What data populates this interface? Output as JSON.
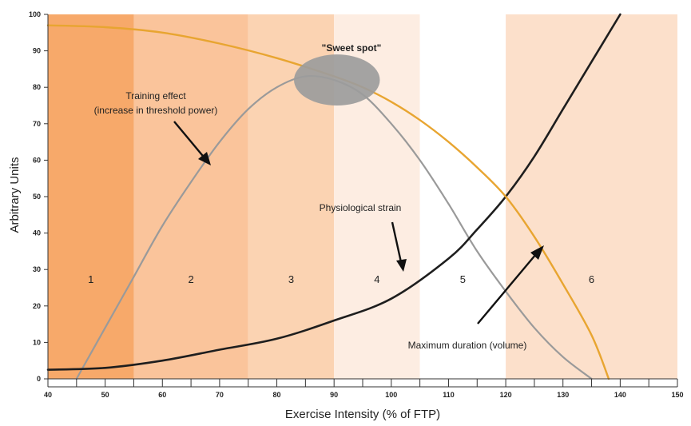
{
  "chart_data": {
    "type": "line",
    "title": "",
    "xlabel": "Exercise Intensity (% of FTP)",
    "ylabel": "Arbitrary Units",
    "xlim": [
      40,
      150
    ],
    "ylim": [
      0,
      100
    ],
    "x_ticks": [
      40,
      50,
      60,
      70,
      80,
      90,
      100,
      110,
      120,
      130,
      140,
      150
    ],
    "y_ticks": [
      0,
      10,
      20,
      30,
      40,
      50,
      60,
      70,
      80,
      90,
      100
    ],
    "zones": [
      {
        "label": "1",
        "x_from": 40,
        "x_to": 55,
        "color": "#f7a96a"
      },
      {
        "label": "2",
        "x_from": 55,
        "x_to": 75,
        "color": "#fac49b"
      },
      {
        "label": "3",
        "x_from": 75,
        "x_to": 90,
        "color": "#fbd3b2"
      },
      {
        "label": "4",
        "x_from": 90,
        "x_to": 105,
        "color": "#fdede2"
      },
      {
        "label": "5",
        "x_from": 105,
        "x_to": 120,
        "color": "#ffffff"
      },
      {
        "label": "6",
        "x_from": 120,
        "x_to": 150,
        "color": "#fce0cb"
      }
    ],
    "series": [
      {
        "key": "training",
        "color": "#9a9a9a",
        "x": [
          45,
          50,
          55,
          60,
          65,
          70,
          75,
          80,
          85,
          90,
          95,
          100,
          105,
          110,
          115,
          120,
          125,
          130,
          135
        ],
        "y": [
          0,
          14,
          28,
          42,
          54,
          65,
          74,
          80,
          83,
          82,
          78,
          70,
          60,
          48,
          35,
          24,
          14,
          6,
          0
        ]
      },
      {
        "key": "strain",
        "color": "#1e1e1e",
        "x": [
          40,
          50,
          60,
          70,
          80,
          90,
          100,
          110,
          115,
          120,
          125,
          130,
          135,
          140
        ],
        "y": [
          2.5,
          3,
          5,
          8,
          11,
          16,
          22,
          33,
          41,
          50,
          61,
          74,
          87,
          100
        ]
      },
      {
        "key": "duration",
        "color": "#e8a531",
        "x": [
          40,
          50,
          60,
          70,
          80,
          90,
          95,
          100,
          105,
          110,
          115,
          120,
          125,
          130,
          135,
          138
        ],
        "y": [
          97,
          96.5,
          95,
          92,
          88,
          83,
          80,
          76,
          71,
          65,
          58,
          50,
          39,
          26,
          12,
          0
        ]
      }
    ],
    "annotations": {
      "sweet_spot": "\"Sweet spot\"",
      "training_line1": "Training effect",
      "training_line2": "(increase in threshold power)",
      "strain": "Physiological strain",
      "duration": "Maximum duration (volume)"
    },
    "sweet_spot_marker": {
      "x": 90.5,
      "y": 82,
      "rx_units": 7.5,
      "ry_units": 7,
      "color": "#9c9c9c"
    }
  }
}
